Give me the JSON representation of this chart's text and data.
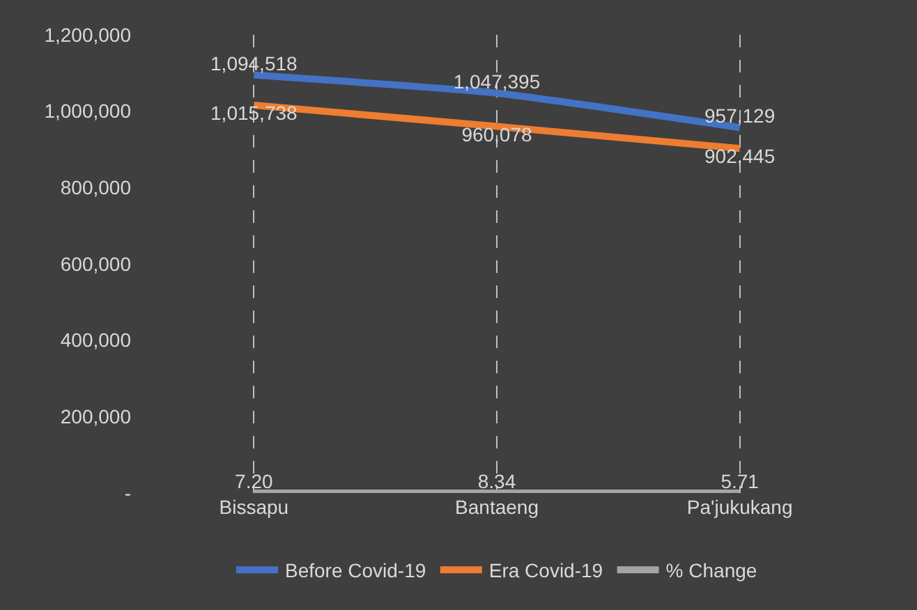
{
  "chart_data": {
    "type": "line",
    "categories": [
      "Bissapu",
      "Bantaeng",
      "Pa'jukukang"
    ],
    "series": [
      {
        "name": "Before Covid-19",
        "color": "#4472c4",
        "values": [
          1094518,
          1047395,
          957129
        ],
        "value_labels": [
          "1,094,518",
          "1,047,395",
          "957,129"
        ]
      },
      {
        "name": "Era Covid-19",
        "color": "#ed7d31",
        "values": [
          1015738,
          960078,
          902445
        ],
        "value_labels": [
          "1,015,738",
          "960,078",
          "902,445"
        ]
      },
      {
        "name": "% Change",
        "color": "#a5a5a5",
        "values": [
          7.2,
          8.34,
          5.71
        ],
        "value_labels": [
          "7.20",
          "8.34",
          "5.71"
        ]
      }
    ],
    "ylim": [
      0,
      1200000
    ],
    "yticks": [
      {
        "value": 0,
        "label": "-"
      },
      {
        "value": 200000,
        "label": "200,000"
      },
      {
        "value": 400000,
        "label": "400,000"
      },
      {
        "value": 600000,
        "label": "600,000"
      },
      {
        "value": 800000,
        "label": "800,000"
      },
      {
        "value": 1000000,
        "label": "1,000,000"
      },
      {
        "value": 1200000,
        "label": "1,200,000"
      }
    ],
    "grid": "x",
    "legend": "bottom",
    "marker": "none",
    "line_style": "solid"
  }
}
